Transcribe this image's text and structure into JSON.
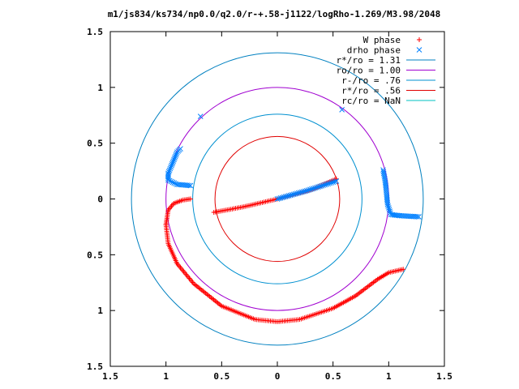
{
  "chart_data": {
    "type": "scatter",
    "title": "m1/js834/ks734/np0.0/q2.0/r-+.58-j1122/logRho-1.269/M3.98/2048",
    "xlim": [
      -1.5,
      1.5
    ],
    "ylim": [
      -1.5,
      1.5
    ],
    "x_ticks": [
      -1.5,
      -1,
      -0.5,
      0,
      0.5,
      1,
      1.5
    ],
    "x_tick_labels": [
      "1.5",
      "1",
      "0.5",
      "0",
      "0.5",
      "1",
      "1.5"
    ],
    "y_ticks": [
      1.5,
      1,
      0.5,
      0,
      -0.5,
      -1,
      -1.5
    ],
    "y_tick_labels": [
      "1.5",
      "1",
      "0.5",
      "0",
      "0.5",
      "1",
      "1.5"
    ],
    "grid": false,
    "legend_position": "top-right",
    "colors": {
      "w_phase": "#ff0000",
      "drho_phase": "#0080ff",
      "r_star": "#0080c0",
      "ro": "#a000d0",
      "r_minus": "#0090d0",
      "r_star_small": "#e00000",
      "rc": "#00c0c0"
    },
    "series": [
      {
        "name": "W phase",
        "marker": "plus",
        "segments": [
          [
            [
              -0.57,
              -0.12
            ],
            [
              -0.3,
              -0.07
            ],
            [
              0,
              0
            ],
            [
              0.3,
              0.08
            ],
            [
              0.53,
              0.18
            ]
          ],
          [
            [
              -1.0,
              -0.23
            ],
            [
              -0.98,
              -0.4
            ],
            [
              -0.9,
              -0.58
            ],
            [
              -0.75,
              -0.76
            ],
            [
              -0.5,
              -0.96
            ],
            [
              -0.2,
              -1.08
            ],
            [
              0,
              -1.1
            ],
            [
              0.2,
              -1.08
            ],
            [
              0.5,
              -0.98
            ],
            [
              0.7,
              -0.87
            ],
            [
              0.9,
              -0.72
            ],
            [
              1.0,
              -0.66
            ],
            [
              1.13,
              -0.63
            ]
          ],
          [
            [
              -1.0,
              -0.23
            ],
            [
              -0.98,
              -0.1
            ],
            [
              -0.93,
              -0.04
            ],
            [
              -0.85,
              -0.01
            ],
            [
              -0.78,
              0.0
            ]
          ]
        ]
      },
      {
        "name": "drho phase",
        "marker": "cross",
        "segments": [
          [
            [
              0,
              0
            ],
            [
              0.25,
              0.07
            ],
            [
              0.53,
              0.16
            ]
          ],
          [
            [
              -0.78,
              0.12
            ],
            [
              -0.9,
              0.13
            ],
            [
              -0.98,
              0.17
            ],
            [
              -0.98,
              0.23
            ],
            [
              -0.95,
              0.3
            ],
            [
              -0.9,
              0.42
            ],
            [
              -0.87,
              0.45
            ]
          ],
          [
            [
              -0.69,
              0.74
            ]
          ],
          [
            [
              0.58,
              0.8
            ]
          ],
          [
            [
              0.95,
              0.26
            ],
            [
              0.97,
              0.15
            ],
            [
              0.99,
              -0.05
            ],
            [
              1.02,
              -0.14
            ],
            [
              1.1,
              -0.15
            ],
            [
              1.27,
              -0.16
            ]
          ]
        ]
      }
    ],
    "circles": [
      {
        "name": "r*/ro = 1.31",
        "radius": 1.31
      },
      {
        "name": "ro/ro = 1.00",
        "radius": 1.0
      },
      {
        "name": "r-/ro = .76",
        "radius": 0.76
      },
      {
        "name": "r*/ro = .56",
        "radius": 0.56
      },
      {
        "name": "rc/ro = NaN",
        "radius": null
      }
    ]
  }
}
